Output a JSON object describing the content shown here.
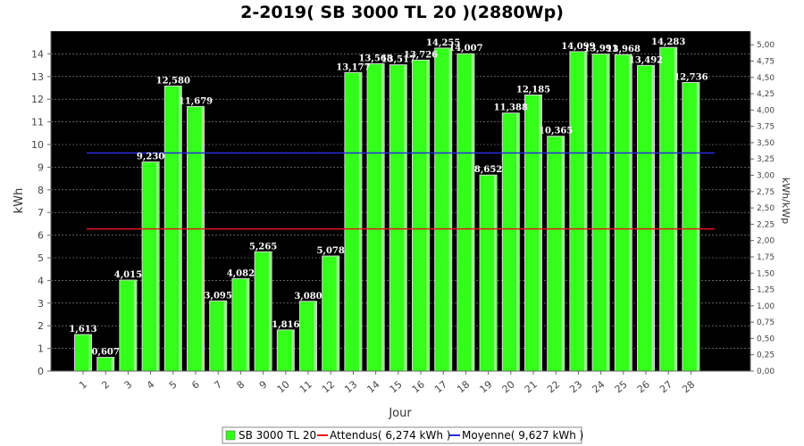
{
  "chart_data": {
    "type": "bar",
    "title": "2-2019( SB 3000 TL 20 )(2880Wp)",
    "xlabel": "Jour",
    "ylabel": "kWh",
    "y2label": "kWh/kWp",
    "ylim": [
      0,
      15
    ],
    "y2lim": [
      0,
      5.208
    ],
    "grid": true,
    "legend_position": "bottom",
    "categories": [
      "1",
      "2",
      "3",
      "4",
      "5",
      "6",
      "7",
      "8",
      "9",
      "10",
      "11",
      "12",
      "13",
      "14",
      "15",
      "16",
      "17",
      "18",
      "19",
      "20",
      "21",
      "22",
      "23",
      "24",
      "25",
      "26",
      "27",
      "28"
    ],
    "series": [
      {
        "name": "SB 3000 TL 20",
        "type": "bar",
        "color": "#33ff1a",
        "values": [
          1.613,
          0.607,
          4.015,
          9.23,
          12.58,
          11.679,
          3.095,
          4.082,
          5.265,
          1.816,
          3.08,
          5.078,
          13.177,
          13.568,
          13.517,
          13.726,
          14.255,
          14.007,
          8.652,
          11.388,
          12.185,
          10.365,
          14.099,
          13.991,
          13.968,
          13.492,
          14.283,
          12.736
        ],
        "value_labels": [
          "1,613",
          "0,607",
          "4,015",
          "9,230",
          "12,580",
          "11,679",
          "3,095",
          "4,082",
          "5,265",
          "1,816",
          "3,080",
          "5,078",
          "13,177",
          "13,568",
          "13,517",
          "13,726",
          "14,255",
          "14,007",
          "8,652",
          "11,388",
          "12,185",
          "10,365",
          "14,099",
          "13,991",
          "13,968",
          "13,492",
          "14,283",
          "12,736"
        ]
      },
      {
        "name": "Attendus( 6,274 kWh )",
        "type": "line",
        "color": "#e8141c",
        "value": 6.274
      },
      {
        "name": "Moyenne( 9,627 kWh )",
        "type": "line",
        "color": "#2a2ae0",
        "value": 9.627
      }
    ],
    "yticks": [
      "0",
      "1",
      "2",
      "3",
      "4",
      "5",
      "6",
      "7",
      "8",
      "9",
      "10",
      "11",
      "12",
      "13",
      "14"
    ],
    "y2ticks": [
      "0,00",
      "0,25",
      "0,50",
      "0,75",
      "1,00",
      "1,25",
      "1,50",
      "1,75",
      "2,00",
      "2,25",
      "2,50",
      "2,75",
      "3,00",
      "3,25",
      "3,50",
      "3,75",
      "4,00",
      "4,25",
      "4,50",
      "4,75",
      "5,00"
    ]
  }
}
